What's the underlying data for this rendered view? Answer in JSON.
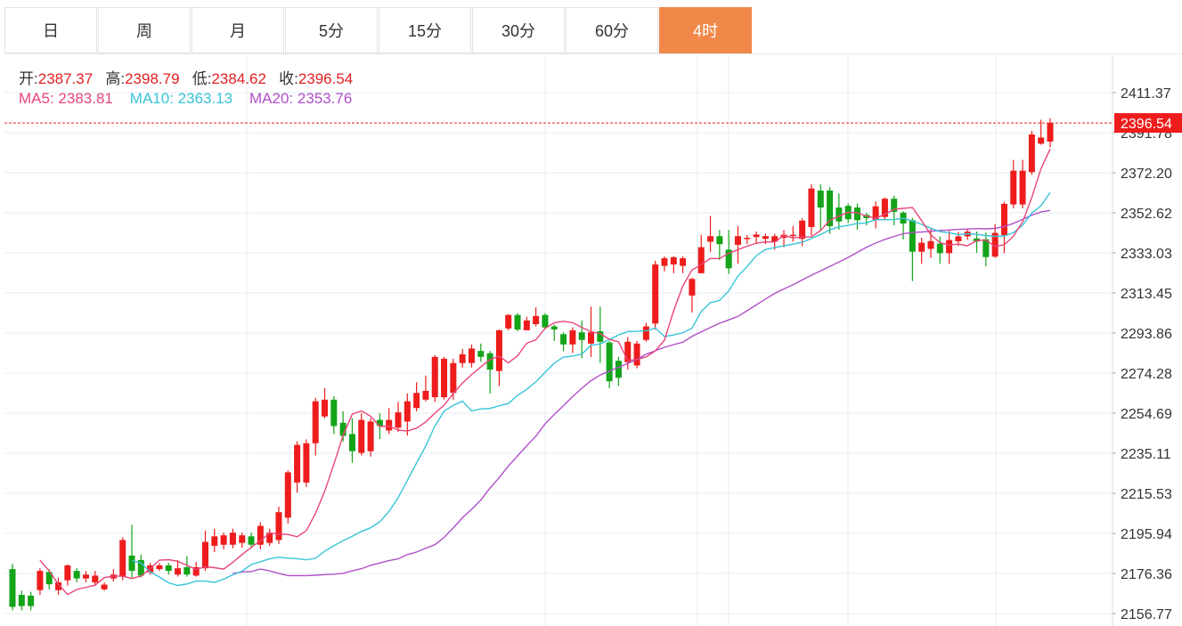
{
  "tabs": [
    {
      "label": "日",
      "active": false
    },
    {
      "label": "周",
      "active": false
    },
    {
      "label": "月",
      "active": false
    },
    {
      "label": "5分",
      "active": false
    },
    {
      "label": "15分",
      "active": false
    },
    {
      "label": "30分",
      "active": false
    },
    {
      "label": "60分",
      "active": false
    },
    {
      "label": "4时",
      "active": true
    }
  ],
  "ohlc": {
    "open_label": "开:",
    "open": "2387.37",
    "high_label": "高:",
    "high": "2398.79",
    "low_label": "低:",
    "low": "2384.62",
    "close_label": "收:",
    "close": "2396.54"
  },
  "ma": {
    "ma5_label": "MA5:",
    "ma5": "2383.81",
    "ma10_label": "MA10:",
    "ma10": "2363.13",
    "ma20_label": "MA20:",
    "ma20": "2353.76"
  },
  "colors": {
    "up": "#ee1c1c",
    "down": "#13a418",
    "ma5": "#e8457a",
    "ma10": "#38c4d8",
    "ma20": "#b04fc8",
    "grid": "#e6edf3",
    "label_red": "#e02020",
    "active_tab": "#f0884a"
  },
  "chart_data": {
    "type": "candlestick",
    "y_ticks": [
      "2411.37",
      "2391.78",
      "2372.20",
      "2352.62",
      "2333.03",
      "2313.45",
      "2293.86",
      "2274.28",
      "2254.69",
      "2235.11",
      "2215.53",
      "2195.94",
      "2176.36",
      "2156.77"
    ],
    "ylim": [
      2156.77,
      2411.37
    ],
    "last_price": "2396.54",
    "candles": [
      [
        2178.5,
        2160.0,
        2181.1,
        2158.3
      ],
      [
        2165.9,
        2160.4,
        2167.9,
        2158.3
      ],
      [
        2165.5,
        2160.4,
        2167.4,
        2158.3
      ],
      [
        2168.2,
        2177.6,
        2178.9,
        2165.9
      ],
      [
        2177.1,
        2171.1,
        2178.5,
        2168.6
      ],
      [
        2168.2,
        2172.0,
        2174.3,
        2165.9
      ],
      [
        2173.0,
        2180.3,
        2180.8,
        2170.4
      ],
      [
        2177.6,
        2173.9,
        2178.9,
        2172.0
      ],
      [
        2173.9,
        2175.8,
        2177.6,
        2172.0
      ],
      [
        2172.0,
        2175.3,
        2177.6,
        2170.4
      ],
      [
        2168.6,
        2170.9,
        2172.0,
        2167.9
      ],
      [
        2173.9,
        2175.8,
        2178.5,
        2172.4
      ],
      [
        2174.8,
        2192.7,
        2194.0,
        2173.0
      ],
      [
        2185.1,
        2177.6,
        2200.1,
        2174.3
      ],
      [
        2182.9,
        2175.3,
        2185.6,
        2174.3
      ],
      [
        2176.9,
        2180.3,
        2181.5,
        2175.8
      ],
      [
        2178.5,
        2180.3,
        2181.5,
        2177.6
      ],
      [
        2180.3,
        2177.6,
        2181.5,
        2175.8
      ],
      [
        2175.8,
        2178.9,
        2182.9,
        2174.8
      ],
      [
        2179.4,
        2175.8,
        2184.8,
        2174.8
      ],
      [
        2175.3,
        2179.4,
        2182.0,
        2174.8
      ],
      [
        2178.9,
        2191.8,
        2197.3,
        2177.6
      ],
      [
        2189.9,
        2194.5,
        2198.2,
        2186.8
      ],
      [
        2190.4,
        2195.0,
        2196.3,
        2188.1
      ],
      [
        2190.4,
        2196.3,
        2198.2,
        2188.7
      ],
      [
        2191.3,
        2195.0,
        2196.3,
        2189.0
      ],
      [
        2194.5,
        2190.4,
        2196.3,
        2188.7
      ],
      [
        2190.4,
        2199.6,
        2201.4,
        2188.1
      ],
      [
        2191.3,
        2196.3,
        2198.2,
        2189.9
      ],
      [
        2192.7,
        2206.3,
        2209.0,
        2190.8
      ],
      [
        2203.6,
        2225.8,
        2226.7,
        2200.8
      ],
      [
        2220.8,
        2239.2,
        2241.0,
        2215.8
      ],
      [
        2220.8,
        2240.0,
        2241.9,
        2218.6
      ],
      [
        2240.0,
        2260.5,
        2262.2,
        2234.0
      ],
      [
        2253.1,
        2261.3,
        2266.9,
        2252.2
      ],
      [
        2261.3,
        2248.4,
        2263.0,
        2244.5
      ],
      [
        2250.0,
        2243.6,
        2255.6,
        2240.8
      ],
      [
        2244.5,
        2236.1,
        2252.2,
        2230.4
      ],
      [
        2235.3,
        2251.4,
        2254.6,
        2234.0
      ],
      [
        2236.1,
        2250.6,
        2252.2,
        2233.5
      ],
      [
        2251.4,
        2248.4,
        2254.6,
        2242.1
      ],
      [
        2246.2,
        2251.4,
        2257.2,
        2244.5
      ],
      [
        2247.6,
        2255.1,
        2260.2,
        2245.5
      ],
      [
        2250.6,
        2260.5,
        2264.3,
        2243.8
      ],
      [
        2257.2,
        2264.6,
        2269.8,
        2255.6
      ],
      [
        2261.3,
        2265.6,
        2273.1,
        2260.4
      ],
      [
        2262.5,
        2282.2,
        2283.1,
        2260.2
      ],
      [
        2262.5,
        2281.3,
        2282.2,
        2261.3
      ],
      [
        2264.6,
        2279.2,
        2281.3,
        2261.3
      ],
      [
        2279.2,
        2283.5,
        2286.1,
        2277.0
      ],
      [
        2279.2,
        2286.3,
        2288.3,
        2277.0
      ],
      [
        2285.1,
        2282.2,
        2288.7,
        2279.8
      ],
      [
        2284.0,
        2276.0,
        2285.1,
        2264.3
      ],
      [
        2275.3,
        2295.2,
        2295.6,
        2267.9
      ],
      [
        2296.1,
        2302.7,
        2303.1,
        2295.2
      ],
      [
        2302.7,
        2295.6,
        2303.6,
        2294.7
      ],
      [
        2295.2,
        2300.0,
        2301.8,
        2295.2
      ],
      [
        2298.2,
        2302.2,
        2306.4,
        2297.1
      ],
      [
        2302.7,
        2296.6,
        2303.6,
        2295.6
      ],
      [
        2297.1,
        2295.6,
        2298.0,
        2290.0
      ],
      [
        2293.3,
        2288.3,
        2294.2,
        2285.0
      ],
      [
        2288.3,
        2295.2,
        2296.6,
        2284.1
      ],
      [
        2294.2,
        2290.5,
        2300.0,
        2281.5
      ],
      [
        2288.7,
        2294.2,
        2306.8,
        2282.2
      ],
      [
        2294.7,
        2289.6,
        2306.8,
        2279.2
      ],
      [
        2289.2,
        2270.3,
        2290.0,
        2266.9
      ],
      [
        2280.3,
        2272.0,
        2282.2,
        2268.0
      ],
      [
        2279.6,
        2289.6,
        2291.9,
        2276.0
      ],
      [
        2278.0,
        2288.7,
        2290.0,
        2276.6
      ],
      [
        2290.5,
        2297.1,
        2298.9,
        2289.6
      ],
      [
        2298.5,
        2327.4,
        2329.2,
        2295.6
      ],
      [
        2326.7,
        2330.4,
        2331.3,
        2324.0
      ],
      [
        2327.4,
        2330.9,
        2331.5,
        2323.1
      ],
      [
        2326.7,
        2330.4,
        2331.3,
        2323.1
      ],
      [
        2312.2,
        2320.3,
        2320.9,
        2303.9
      ],
      [
        2323.1,
        2335.8,
        2341.9,
        2323.1
      ],
      [
        2338.5,
        2341.2,
        2351.1,
        2333.5
      ],
      [
        2341.2,
        2337.3,
        2344.2,
        2329.5
      ],
      [
        2334.6,
        2325.5,
        2344.2,
        2322.7
      ],
      [
        2337.0,
        2341.2,
        2346.2,
        2327.8
      ],
      [
        2339.9,
        2340.4,
        2341.7,
        2337.3
      ],
      [
        2340.8,
        2342.0,
        2343.5,
        2337.3
      ],
      [
        2339.9,
        2341.2,
        2342.4,
        2337.3
      ],
      [
        2338.5,
        2341.2,
        2342.4,
        2334.6
      ],
      [
        2340.4,
        2341.9,
        2344.2,
        2335.8
      ],
      [
        2341.9,
        2341.9,
        2346.2,
        2338.5
      ],
      [
        2339.9,
        2348.8,
        2349.9,
        2336.3
      ],
      [
        2345.7,
        2364.5,
        2366.6,
        2341.6
      ],
      [
        2363.5,
        2355.2,
        2366.6,
        2344.2
      ],
      [
        2363.5,
        2346.1,
        2365.1,
        2342.4
      ],
      [
        2355.2,
        2348.4,
        2362.1,
        2344.4
      ],
      [
        2356.0,
        2349.5,
        2357.2,
        2347.7
      ],
      [
        2355.2,
        2349.0,
        2357.2,
        2344.4
      ],
      [
        2351.6,
        2350.0,
        2352.6,
        2346.5
      ],
      [
        2349.0,
        2355.8,
        2358.2,
        2345.0
      ],
      [
        2350.6,
        2359.5,
        2360.1,
        2349.0
      ],
      [
        2359.5,
        2353.1,
        2361.0,
        2346.5
      ],
      [
        2352.7,
        2347.4,
        2353.4,
        2339.6
      ],
      [
        2349.0,
        2333.6,
        2350.1,
        2319.2
      ],
      [
        2333.6,
        2338.0,
        2340.4,
        2327.7
      ],
      [
        2335.0,
        2338.8,
        2345.0,
        2330.6
      ],
      [
        2337.6,
        2332.9,
        2341.1,
        2327.7
      ],
      [
        2332.9,
        2339.3,
        2343.8,
        2327.7
      ],
      [
        2338.7,
        2341.1,
        2343.3,
        2336.4
      ],
      [
        2341.1,
        2343.4,
        2345.0,
        2339.4
      ],
      [
        2340.1,
        2338.6,
        2343.5,
        2333.0
      ],
      [
        2339.7,
        2331.0,
        2343.0,
        2326.6
      ],
      [
        2331.2,
        2342.8,
        2347.1,
        2330.6
      ],
      [
        2341.7,
        2357.0,
        2358.0,
        2332.9
      ],
      [
        2356.7,
        2373.2,
        2378.5,
        2354.8
      ],
      [
        2356.7,
        2373.2,
        2378.5,
        2354.8
      ],
      [
        2372.5,
        2390.9,
        2392.6,
        2371.2
      ],
      [
        2386.4,
        2389.4,
        2398.1,
        2385.9
      ],
      [
        2387.4,
        2396.5,
        2398.8,
        2384.6
      ]
    ],
    "ma5": [
      2182.9,
      2177.6,
      2171.1,
      2166.1,
      2168.5,
      2169.6,
      2170.6,
      2174.3,
      2175.1,
      2175.0,
      2173.9,
      2175.1,
      2178.7,
      2182.9,
      2183.1,
      2182.3,
      2180.3,
      2178.3,
      2179.6,
      2179.2,
      2178.5,
      2181.8,
      2185.6,
      2189.1,
      2192.4,
      2196.1,
      2195.6,
      2195.4,
      2194.3,
      2197.3,
      2205.7,
      2216.5,
      2229.7,
      2243.9,
      2254.2,
      2255.8,
      2253.2,
      2248.2,
      2248.4,
      2246.4,
      2246.0,
      2247.4,
      2250.4,
      2254.7,
      2258.6,
      2264.4,
      2269.4,
      2273.6,
      2277.3,
      2280.9,
      2282.6,
      2279.3,
      2282.7,
      2288.9,
      2290.6,
      2296.2,
      2298.9,
      2299.6,
      2298.9,
      2296.6,
      2294.5,
      2293.6,
      2290.8,
      2289.6,
      2280.4,
      2281.0,
      2282.2,
      2285.1,
      2290.4,
      2304.8,
      2316.9,
      2324.7,
      2327.3,
      2330.3,
      2330.3,
      2332.8,
      2334.6,
      2336.3,
      2337.8,
      2338.4,
      2338.4,
      2341.5,
      2340.4,
      2340.8,
      2340.9,
      2344.0,
      2348.9,
      2351.0,
      2352.9,
      2352.6,
      2351.0,
      2350.0,
      2351.9,
      2354.3,
      2354.8,
      2355.2,
      2348.8,
      2341.9,
      2338.0,
      2336.9,
      2337.3,
      2336.5,
      2339.1,
      2339.3,
      2336.2,
      2337.0,
      2341.2,
      2348.2,
      2360.2,
      2374.2,
      2383.8
    ],
    "ma10": [
      2182.6,
      2181.5,
      2177.1,
      2174.6,
      2171.8,
      2170.5,
      2171.2,
      2172.6,
      2172.6,
      2172.0,
      2173.6,
      2175.7,
      2177.5,
      2180.7,
      2182.1,
      2183.5,
      2184.3,
      2183.8,
      2183.6,
      2183.0,
      2183.8,
      2187.3,
      2189.9,
      2192.4,
      2194.5,
      2196.9,
      2198.7,
      2201.6,
      2206.7,
      2213.4,
      2221.8,
      2230.3,
      2238.6,
      2248.4,
      2255.7,
      2258.5,
      2260.6,
      2255.8,
      2256.8,
      2257.0,
      2258.3,
      2259.4,
      2263.4,
      2266.3,
      2270.1,
      2274.7,
      2279.2,
      2282.1,
      2282.6,
      2283.6,
      2287.9,
      2288.5,
      2290.7,
      2292.9,
      2294.6,
      2294.7,
      2295.0,
      2296.3,
      2292.1,
      2292.9,
      2294.0,
      2296.2,
      2304.4,
      2308.7,
      2309.8,
      2314.5,
      2321.7,
      2326.4,
      2331.7,
      2334.7,
      2335.6,
      2336.5,
      2337.3,
      2338.2,
      2340.1,
      2342.0,
      2344.3,
      2345.8,
      2346.5,
      2347.4,
      2347.7,
      2349.3,
      2349.2,
      2349.3,
      2349.9,
      2348.6,
      2347.0,
      2345.1,
      2343.4,
      2342.9,
      2341.9,
      2342.4,
      2342.1,
      2341.5,
      2341.1,
      2341.3,
      2342.9,
      2346.6,
      2352.5,
      2356.1,
      2362.6
    ],
    "ma20": [
      2176.4,
      2177.1,
      2177.3,
      2178.5,
      2177.6,
      2176.4,
      2175.3,
      2175.3,
      2175.3,
      2175.5,
      2175.8,
      2176.0,
      2176.4,
      2177.6,
      2178.7,
      2180.3,
      2181.5,
      2182.6,
      2183.5,
      2185.6,
      2186.8,
      2188.7,
      2190.4,
      2194.0,
      2198.6,
      2203.6,
      2207.7,
      2212.2,
      2218.1,
      2223.2,
      2228.9,
      2233.8,
      2238.7,
      2243.5,
      2249.5,
      2254.1,
      2258.4,
      2262.8,
      2266.9,
      2270.6,
      2273.3,
      2275.3,
      2277.1,
      2279.0,
      2281.0,
      2283.5,
      2285.2,
      2286.9,
      2288.2,
      2289.4,
      2292.2,
      2294.4,
      2296.6,
      2298.6,
      2300.3,
      2302.0,
      2304.8,
      2307.6,
      2310.5,
      2313.2,
      2315.4,
      2317.5,
      2319.8,
      2322.1,
      2324.3,
      2326.4,
      2328.6,
      2330.8,
      2333.3,
      2335.8,
      2337.8,
      2339.6,
      2341.1,
      2342.4,
      2343.0,
      2343.2,
      2343.6,
      2344.0,
      2344.2,
      2344.5,
      2344.7,
      2344.9,
      2344.8,
      2345.0,
      2345.9,
      2347.5,
      2349.4,
      2351.5,
      2353.0,
      2353.8
    ]
  }
}
